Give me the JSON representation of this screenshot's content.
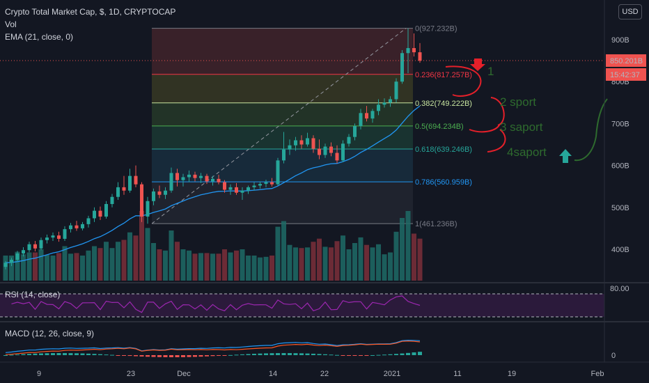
{
  "header": {
    "title": "Crypto Total Market Cap, $, 1D, CRYPTOCAP",
    "vol_label": "Vol",
    "ema_label": "EMA (21, close, 0)",
    "currency_button": "USD"
  },
  "price_axis": {
    "labels": [
      "900B",
      "800B",
      "700B",
      "600B",
      "500B",
      "400B"
    ],
    "values": [
      900,
      800,
      700,
      600,
      500,
      400
    ],
    "current_price": "850.201B",
    "countdown": "15:42:37"
  },
  "rsi": {
    "label": "RSI (14, close)",
    "axis_label": "80.00"
  },
  "macd": {
    "label": "MACD (12, 26, close, 9)",
    "axis_label": "0"
  },
  "time_axis": {
    "labels": [
      "9",
      "23",
      "Dec",
      "14",
      "22",
      "2021",
      "11",
      "19",
      "Feb"
    ]
  },
  "fib_levels": [
    {
      "ratio": "0",
      "value": "927.232B",
      "text": "0(927.232B)",
      "color": "#787b86"
    },
    {
      "ratio": "0.236",
      "value": "817.257B",
      "text": "0.236(817.257B)",
      "color": "#f23645"
    },
    {
      "ratio": "0.382",
      "value": "749.222B",
      "text": "0.382(749.222B)",
      "color": "#c8e6a0"
    },
    {
      "ratio": "0.5",
      "value": "694.234B",
      "text": "0.5(694.234B)",
      "color": "#4caf50"
    },
    {
      "ratio": "0.618",
      "value": "639.246B",
      "text": "0.618(639.246B)",
      "color": "#26a69a"
    },
    {
      "ratio": "0.786",
      "value": "560.959B",
      "text": "0.786(560.959B)",
      "color": "#2196f3"
    },
    {
      "ratio": "1",
      "value": "461.236B",
      "text": "1(461.236B)",
      "color": "#787b86"
    }
  ],
  "annotations": {
    "a1": "1",
    "a2": "2 sport",
    "a3": "3 saport",
    "a4": "4saport"
  },
  "colors": {
    "up": "#26a69a",
    "down": "#ef5350",
    "ema": "#2196f3",
    "rsi": "#9c27b0",
    "macd": "#2196f3",
    "signal": "#ff5722",
    "annotation_red": "#e5202a",
    "annotation_green": "#2e6b2e"
  },
  "chart_data": {
    "type": "candlestick",
    "title": "Crypto Total Market Cap, $, 1D, CRYPTOCAP",
    "y_unit": "B USD",
    "ylim": [
      330,
      1000
    ],
    "candles": [
      {
        "o": 358,
        "h": 372,
        "l": 352,
        "c": 368
      },
      {
        "o": 368,
        "h": 380,
        "l": 360,
        "c": 375
      },
      {
        "o": 375,
        "h": 396,
        "l": 370,
        "c": 390
      },
      {
        "o": 390,
        "h": 405,
        "l": 383,
        "c": 398
      },
      {
        "o": 398,
        "h": 418,
        "l": 393,
        "c": 412
      },
      {
        "o": 412,
        "h": 420,
        "l": 395,
        "c": 402
      },
      {
        "o": 402,
        "h": 428,
        "l": 398,
        "c": 422
      },
      {
        "o": 422,
        "h": 435,
        "l": 414,
        "c": 428
      },
      {
        "o": 428,
        "h": 440,
        "l": 420,
        "c": 433
      },
      {
        "o": 433,
        "h": 442,
        "l": 418,
        "c": 425
      },
      {
        "o": 425,
        "h": 455,
        "l": 420,
        "c": 448
      },
      {
        "o": 448,
        "h": 463,
        "l": 440,
        "c": 457
      },
      {
        "o": 457,
        "h": 468,
        "l": 444,
        "c": 450
      },
      {
        "o": 450,
        "h": 465,
        "l": 445,
        "c": 460
      },
      {
        "o": 460,
        "h": 480,
        "l": 452,
        "c": 474
      },
      {
        "o": 474,
        "h": 500,
        "l": 465,
        "c": 492
      },
      {
        "o": 492,
        "h": 502,
        "l": 470,
        "c": 478
      },
      {
        "o": 478,
        "h": 515,
        "l": 473,
        "c": 508
      },
      {
        "o": 508,
        "h": 532,
        "l": 500,
        "c": 525
      },
      {
        "o": 525,
        "h": 560,
        "l": 518,
        "c": 548
      },
      {
        "o": 548,
        "h": 575,
        "l": 530,
        "c": 540
      },
      {
        "o": 540,
        "h": 592,
        "l": 535,
        "c": 575
      },
      {
        "o": 575,
        "h": 600,
        "l": 548,
        "c": 555
      },
      {
        "o": 555,
        "h": 560,
        "l": 465,
        "c": 478
      },
      {
        "o": 478,
        "h": 525,
        "l": 461,
        "c": 515
      },
      {
        "o": 515,
        "h": 545,
        "l": 505,
        "c": 538
      },
      {
        "o": 538,
        "h": 552,
        "l": 522,
        "c": 530
      },
      {
        "o": 530,
        "h": 548,
        "l": 520,
        "c": 540
      },
      {
        "o": 540,
        "h": 595,
        "l": 535,
        "c": 582
      },
      {
        "o": 582,
        "h": 592,
        "l": 550,
        "c": 565
      },
      {
        "o": 565,
        "h": 580,
        "l": 550,
        "c": 572
      },
      {
        "o": 572,
        "h": 588,
        "l": 560,
        "c": 578
      },
      {
        "o": 578,
        "h": 585,
        "l": 562,
        "c": 570
      },
      {
        "o": 570,
        "h": 582,
        "l": 558,
        "c": 575
      },
      {
        "o": 575,
        "h": 580,
        "l": 556,
        "c": 562
      },
      {
        "o": 562,
        "h": 575,
        "l": 552,
        "c": 568
      },
      {
        "o": 568,
        "h": 578,
        "l": 555,
        "c": 560
      },
      {
        "o": 560,
        "h": 565,
        "l": 535,
        "c": 542
      },
      {
        "o": 542,
        "h": 555,
        "l": 530,
        "c": 548
      },
      {
        "o": 548,
        "h": 558,
        "l": 530,
        "c": 535
      },
      {
        "o": 535,
        "h": 548,
        "l": 518,
        "c": 540
      },
      {
        "o": 540,
        "h": 552,
        "l": 532,
        "c": 548
      },
      {
        "o": 548,
        "h": 560,
        "l": 540,
        "c": 552
      },
      {
        "o": 552,
        "h": 562,
        "l": 545,
        "c": 556
      },
      {
        "o": 556,
        "h": 566,
        "l": 548,
        "c": 560
      },
      {
        "o": 560,
        "h": 570,
        "l": 550,
        "c": 555
      },
      {
        "o": 555,
        "h": 618,
        "l": 552,
        "c": 612
      },
      {
        "o": 612,
        "h": 680,
        "l": 605,
        "c": 638
      },
      {
        "o": 638,
        "h": 662,
        "l": 625,
        "c": 648
      },
      {
        "o": 648,
        "h": 668,
        "l": 635,
        "c": 660
      },
      {
        "o": 660,
        "h": 672,
        "l": 640,
        "c": 650
      },
      {
        "o": 650,
        "h": 678,
        "l": 645,
        "c": 665
      },
      {
        "o": 665,
        "h": 672,
        "l": 630,
        "c": 640
      },
      {
        "o": 640,
        "h": 662,
        "l": 615,
        "c": 625
      },
      {
        "o": 625,
        "h": 652,
        "l": 618,
        "c": 645
      },
      {
        "o": 645,
        "h": 655,
        "l": 622,
        "c": 630
      },
      {
        "o": 630,
        "h": 648,
        "l": 605,
        "c": 612
      },
      {
        "o": 612,
        "h": 660,
        "l": 608,
        "c": 652
      },
      {
        "o": 652,
        "h": 675,
        "l": 645,
        "c": 668
      },
      {
        "o": 668,
        "h": 700,
        "l": 660,
        "c": 694
      },
      {
        "o": 694,
        "h": 735,
        "l": 686,
        "c": 725
      },
      {
        "o": 725,
        "h": 742,
        "l": 705,
        "c": 712
      },
      {
        "o": 712,
        "h": 735,
        "l": 702,
        "c": 730
      },
      {
        "o": 730,
        "h": 758,
        "l": 720,
        "c": 745
      },
      {
        "o": 745,
        "h": 760,
        "l": 738,
        "c": 750
      },
      {
        "o": 750,
        "h": 765,
        "l": 740,
        "c": 758
      },
      {
        "o": 758,
        "h": 808,
        "l": 750,
        "c": 800
      },
      {
        "o": 800,
        "h": 875,
        "l": 795,
        "c": 868
      },
      {
        "o": 868,
        "h": 927,
        "l": 820,
        "c": 880
      },
      {
        "o": 880,
        "h": 915,
        "l": 860,
        "c": 870
      },
      {
        "o": 870,
        "h": 892,
        "l": 845,
        "c": 850
      }
    ]
  }
}
